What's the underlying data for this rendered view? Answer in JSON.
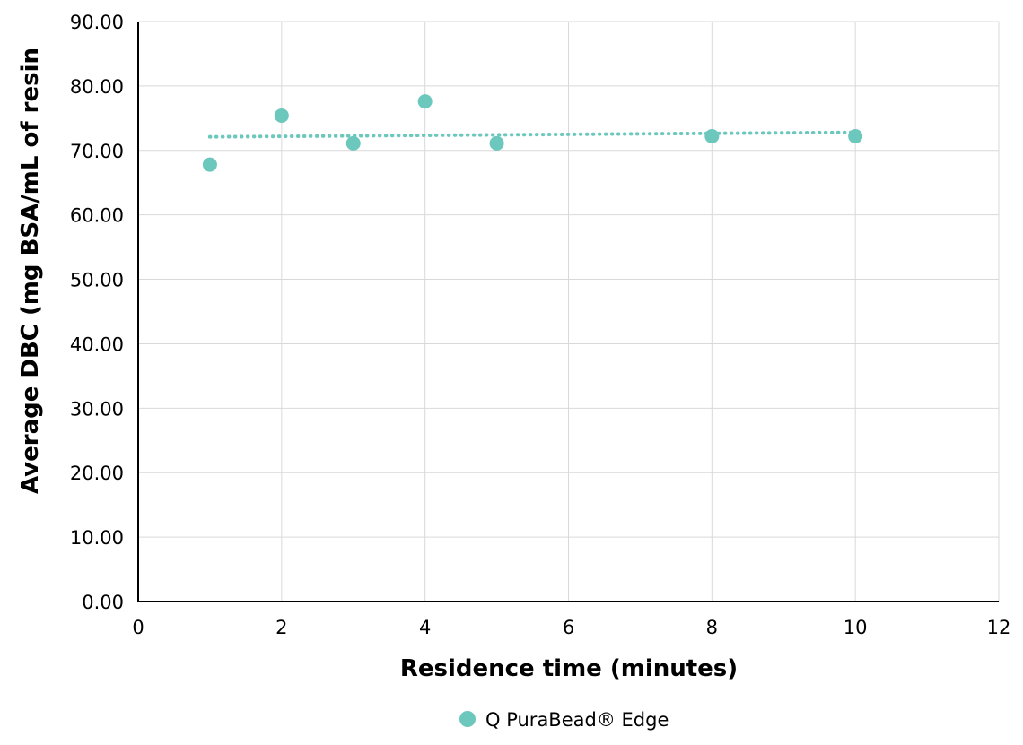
{
  "chart_data": {
    "type": "scatter",
    "title": "",
    "xlabel": "Residence time (minutes)",
    "ylabel": "Average DBC (mg BSA/mL of resin",
    "xlim": [
      0,
      12
    ],
    "ylim": [
      0,
      90
    ],
    "x_ticks": [
      "0",
      "2",
      "4",
      "6",
      "8",
      "10",
      "12"
    ],
    "y_ticks": [
      "0.00",
      "10.00",
      "20.00",
      "30.00",
      "40.00",
      "50.00",
      "60.00",
      "70.00",
      "80.00",
      "90.00"
    ],
    "grid": true,
    "legend_position": "bottom",
    "series": [
      {
        "name": "Q PuraBead® Edge",
        "color": "#6cc7bc",
        "x": [
          1,
          2,
          3,
          4,
          5,
          8,
          10
        ],
        "y": [
          67.8,
          75.4,
          71.1,
          77.6,
          71.1,
          72.2,
          72.2
        ],
        "trendline": {
          "type": "linear",
          "style": "dotted",
          "x": [
            1,
            10
          ],
          "y": [
            72.1,
            72.8
          ]
        }
      }
    ]
  }
}
